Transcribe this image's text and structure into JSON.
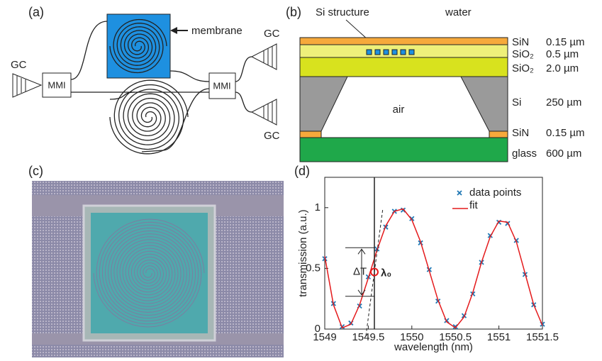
{
  "panels": {
    "a": {
      "label": "(a)",
      "membrane": "membrane",
      "gc": [
        "GC",
        "GC",
        "GC"
      ],
      "mmi": [
        "MMI",
        "MMI"
      ]
    },
    "b": {
      "label": "(b)",
      "si_structure": "Si structure",
      "water": "water",
      "air": "air",
      "layers": [
        {
          "name": "SiN",
          "thickness": "0.15 µm"
        },
        {
          "name": "SiO₂",
          "thickness": "0.5 µm"
        },
        {
          "name": "SiO₂",
          "thickness": "2.0 µm"
        },
        {
          "name": "Si",
          "thickness": "250 µm"
        },
        {
          "name": "SiN",
          "thickness": "0.15 µm"
        },
        {
          "name": "glass",
          "thickness": "600 µm"
        }
      ]
    },
    "c": {
      "label": "(c)"
    }
  },
  "chart_data": {
    "type": "line",
    "panel_label": "(d)",
    "xlabel": "wavelength (nm)",
    "ylabel": "transmission (a.u.)",
    "xlim": [
      1549,
      1551.5
    ],
    "ylim": [
      0,
      1.25
    ],
    "xticks": [
      1549,
      1549.5,
      1550,
      1550.5,
      1551,
      1551.5
    ],
    "yticks": [
      0,
      0.5,
      1
    ],
    "series": [
      {
        "name": "data points",
        "color": "#1f77b4",
        "marker": "x",
        "x": [
          1549,
          1549.1,
          1549.2,
          1549.3,
          1549.4,
          1549.5,
          1549.6,
          1549.7,
          1549.8,
          1549.9,
          1550,
          1550.1,
          1550.2,
          1550.3,
          1550.4,
          1550.5,
          1550.6,
          1550.7,
          1550.8,
          1550.9,
          1551,
          1551.1,
          1551.2,
          1551.3,
          1551.4,
          1551.5
        ],
        "values": [
          0.58,
          0.21,
          0.02,
          0.05,
          0.19,
          0.43,
          0.66,
          0.84,
          0.97,
          0.98,
          0.91,
          0.71,
          0.49,
          0.23,
          0.07,
          0.02,
          0.11,
          0.29,
          0.55,
          0.77,
          0.88,
          0.87,
          0.73,
          0.45,
          0.2,
          0.04
        ]
      },
      {
        "name": "fit",
        "color": "#e41a1c",
        "marker": "line",
        "x": [
          1549,
          1549.1,
          1549.2,
          1549.3,
          1549.4,
          1549.5,
          1549.6,
          1549.7,
          1549.8,
          1549.9,
          1550,
          1550.1,
          1550.2,
          1550.3,
          1550.4,
          1550.5,
          1550.6,
          1550.7,
          1550.8,
          1550.9,
          1551,
          1551.1,
          1551.2,
          1551.3,
          1551.4,
          1551.5
        ],
        "values": [
          0.6,
          0.2,
          0.01,
          0.04,
          0.2,
          0.42,
          0.65,
          0.85,
          0.97,
          0.99,
          0.9,
          0.72,
          0.48,
          0.24,
          0.06,
          0.01,
          0.1,
          0.3,
          0.55,
          0.76,
          0.89,
          0.88,
          0.72,
          0.46,
          0.2,
          0.03
        ]
      }
    ],
    "annotations": [
      {
        "text": "ΔT",
        "y_low": 0.27,
        "y_high": 0.67
      },
      {
        "text": "λ₀",
        "x": 1549.57,
        "y": 0.47
      }
    ]
  }
}
